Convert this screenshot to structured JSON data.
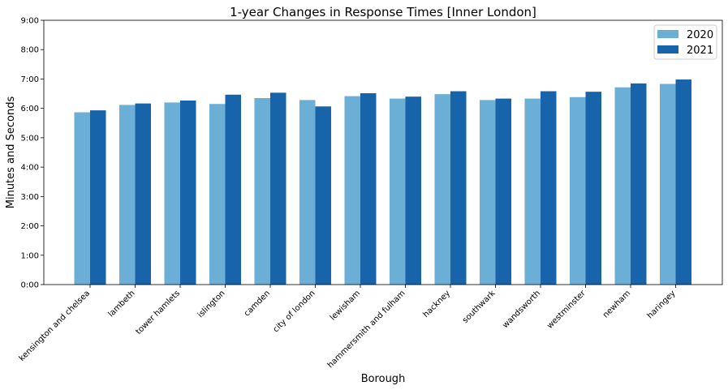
{
  "chart_data": {
    "type": "bar",
    "title": "1-year Changes in Response Times [Inner London]",
    "xlabel": "Borough",
    "ylabel": "Minutes and Seconds",
    "ylim": [
      0,
      540
    ],
    "yticks": [
      0,
      60,
      120,
      180,
      240,
      300,
      360,
      420,
      480,
      540
    ],
    "ytick_labels": [
      "0:00",
      "1:00",
      "2:00",
      "3:00",
      "4:00",
      "5:00",
      "6:00",
      "7:00",
      "8:00",
      "9:00"
    ],
    "categories": [
      "kensington and chelsea",
      "lambeth",
      "tower hamlets",
      "islington",
      "camden",
      "city of london",
      "lewisham",
      "hammersmith and fulham",
      "hackney",
      "southwark",
      "wandsworth",
      "westminster",
      "newham",
      "haringey"
    ],
    "series": [
      {
        "name": "2020",
        "color": "#6baed6",
        "values": [
          352,
          367,
          372,
          369,
          381,
          377,
          385,
          380,
          389,
          377,
          380,
          383,
          403,
          410
        ]
      },
      {
        "name": "2021",
        "color": "#1764ab",
        "values": [
          356,
          370,
          376,
          388,
          392,
          364,
          391,
          384,
          395,
          380,
          395,
          394,
          411,
          419
        ]
      }
    ],
    "grid": false,
    "legend": "top-right"
  }
}
